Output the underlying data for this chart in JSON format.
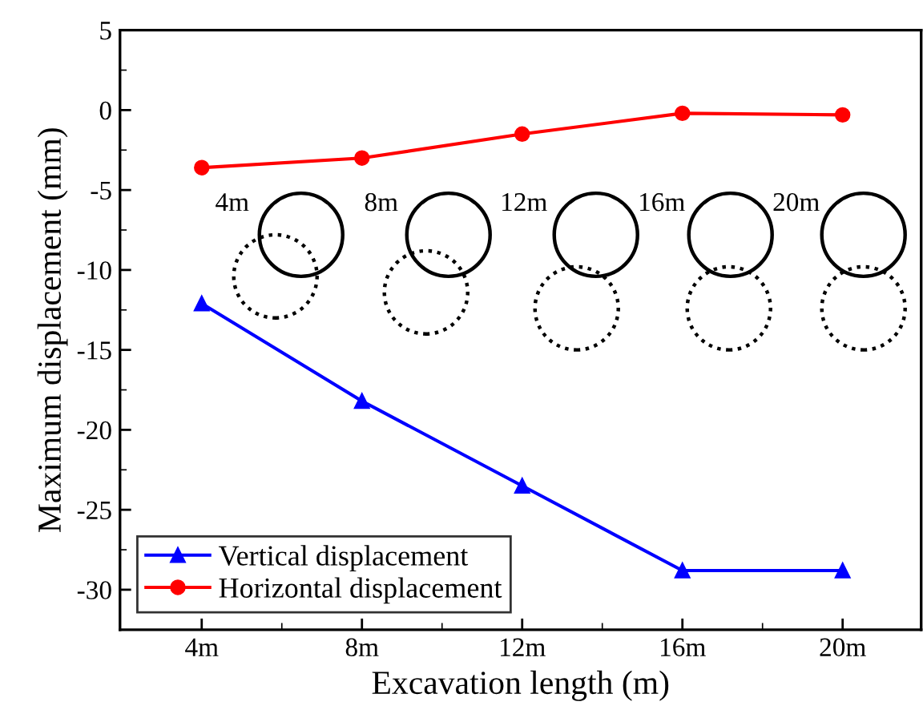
{
  "chart_data": {
    "type": "line",
    "xlabel": "Excavation length (m)",
    "ylabel": "Maximum displacement (mm)",
    "categories": [
      "4m",
      "8m",
      "12m",
      "16m",
      "20m"
    ],
    "series": [
      {
        "name": "Vertical displacement",
        "color": "#0000ff",
        "marker": "triangle",
        "values": [
          -12.1,
          -18.2,
          -23.5,
          -28.8,
          -28.8
        ]
      },
      {
        "name": "Horizontal displacement",
        "color": "#ff0000",
        "marker": "circle",
        "values": [
          -3.6,
          -3.0,
          -1.5,
          -0.2,
          -0.3
        ]
      }
    ],
    "ylim": [
      -32.5,
      5
    ],
    "yticks": [
      -30,
      -25,
      -20,
      -15,
      -10,
      -5,
      0,
      5
    ],
    "annotations": [
      "4m",
      "8m",
      "12m",
      "16m",
      "20m"
    ],
    "legend": "bottom left",
    "grid": false,
    "line_style": "solid"
  }
}
